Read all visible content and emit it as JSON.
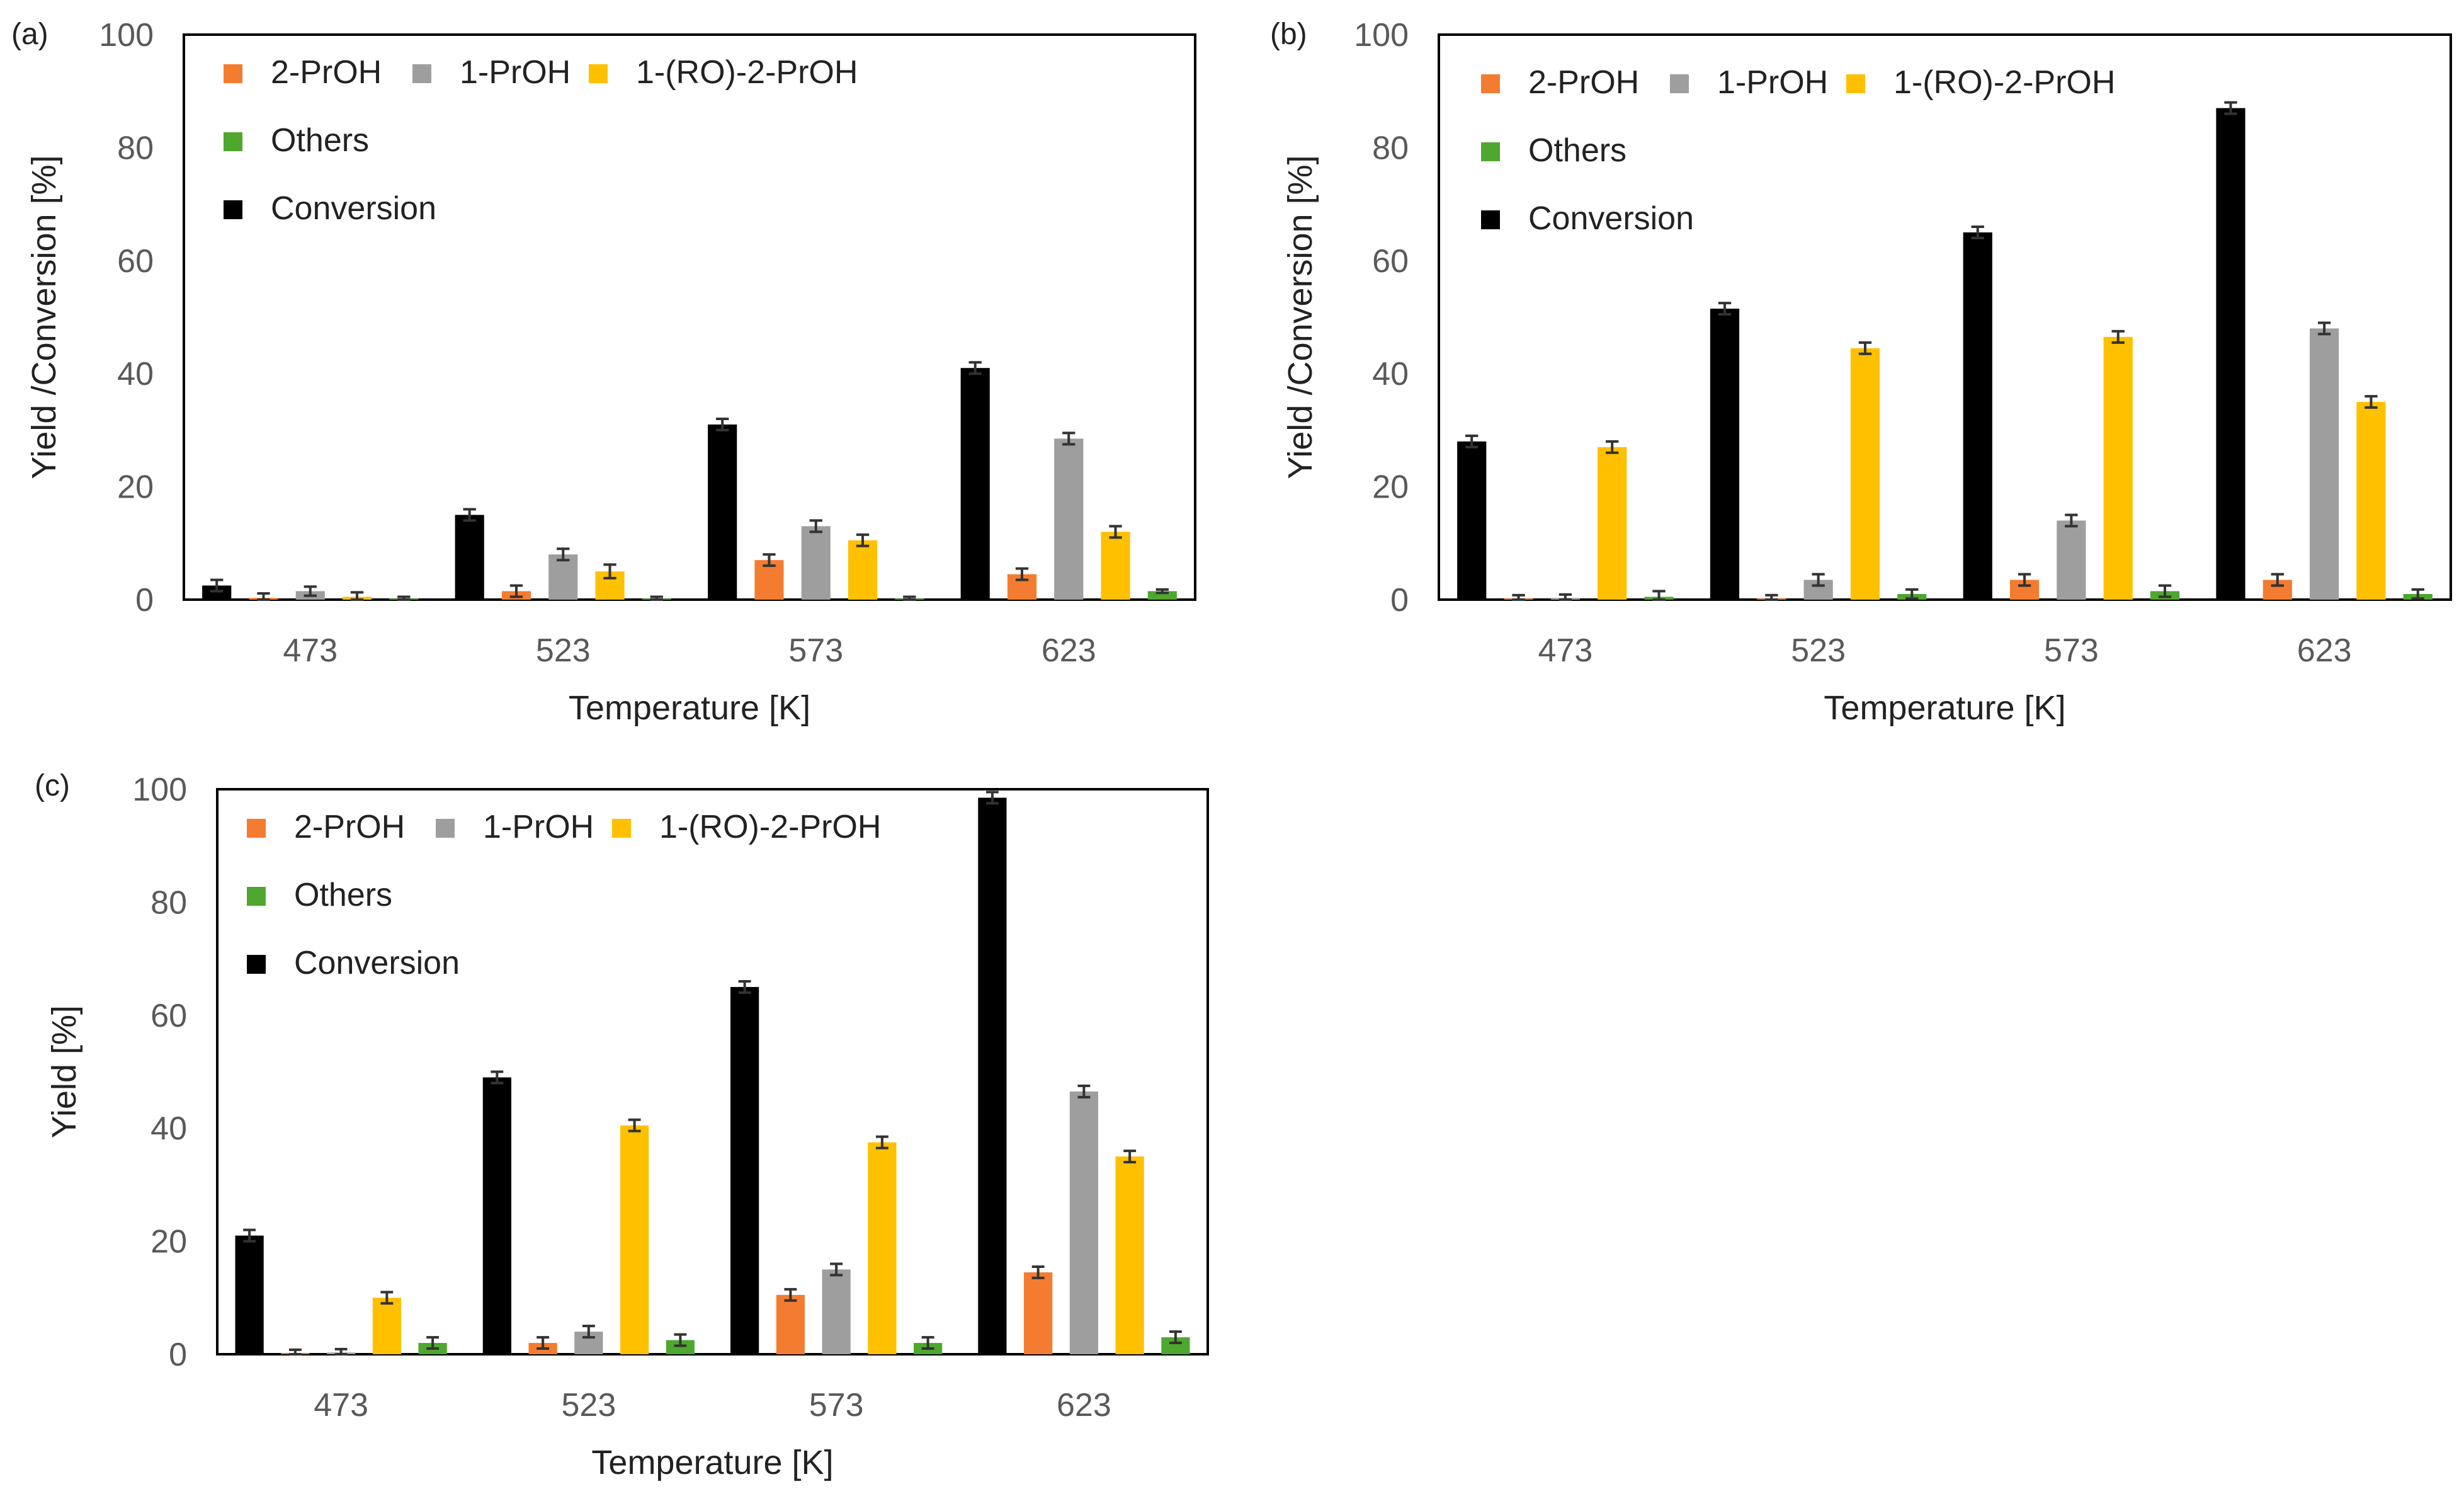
{
  "figure": {
    "panel_labels": [
      "(a)",
      "(b)",
      "(c)"
    ]
  },
  "legend": {
    "items": [
      {
        "key": "2-PrOH",
        "label": "2-PrOH",
        "color": "#F47C30"
      },
      {
        "key": "1-PrOH",
        "label": "1-PrOH",
        "color": "#9E9E9E"
      },
      {
        "key": "1-RO-2-PrOH",
        "label": "1-(RO)-2-PrOH",
        "color": "#FFC000"
      },
      {
        "key": "Others",
        "label": "Others",
        "color": "#4EA72E"
      },
      {
        "key": "Conversion",
        "label": "Conversion",
        "color": "#000000"
      }
    ]
  },
  "chart_data": [
    {
      "type": "bar",
      "panel": "(a)",
      "title": "",
      "xlabel": "Temperature [K]",
      "ylabel": "Yield /Conversion [%]",
      "ylim": [
        0,
        100
      ],
      "yticks": [
        "0",
        "20",
        "40",
        "60",
        "80",
        "100"
      ],
      "categories": [
        "473",
        "523",
        "573",
        "623"
      ],
      "series": [
        {
          "name": "Conversion",
          "values": [
            2.5,
            15,
            31,
            41
          ],
          "errors": [
            1,
            1,
            1,
            1
          ]
        },
        {
          "name": "2-PrOH",
          "values": [
            0.3,
            1.5,
            7,
            4.5
          ],
          "errors": [
            0.8,
            1,
            1,
            1
          ]
        },
        {
          "name": "1-PrOH",
          "values": [
            1.5,
            8,
            13,
            28.5
          ],
          "errors": [
            0.8,
            1,
            1,
            1
          ]
        },
        {
          "name": "1-(RO)-2-PrOH",
          "values": [
            0.5,
            5,
            10.5,
            12
          ],
          "errors": [
            0.8,
            1.2,
            1,
            1
          ]
        },
        {
          "name": "Others",
          "values": [
            0.2,
            0.2,
            0.2,
            1.5
          ],
          "errors": [
            0.3,
            0.3,
            0.3,
            0.3
          ]
        }
      ]
    },
    {
      "type": "bar",
      "panel": "(b)",
      "title": "",
      "xlabel": "Temperature [K]",
      "ylabel": "Yield /Conversion [%]",
      "ylim": [
        0,
        100
      ],
      "yticks": [
        "0",
        "20",
        "40",
        "60",
        "80",
        "100"
      ],
      "categories": [
        "473",
        "523",
        "573",
        "623"
      ],
      "series": [
        {
          "name": "Conversion",
          "values": [
            28,
            51.5,
            65,
            87
          ],
          "errors": [
            1,
            1,
            1,
            1
          ]
        },
        {
          "name": "2-PrOH",
          "values": [
            0.2,
            0.2,
            3.5,
            3.5
          ],
          "errors": [
            0.6,
            0.6,
            1,
            1
          ]
        },
        {
          "name": "1-PrOH",
          "values": [
            0.3,
            3.5,
            14,
            48
          ],
          "errors": [
            0.6,
            1,
            1,
            1
          ]
        },
        {
          "name": "1-(RO)-2-PrOH",
          "values": [
            27,
            44.5,
            46.5,
            35
          ],
          "errors": [
            1,
            1,
            1,
            1
          ]
        },
        {
          "name": "Others",
          "values": [
            0.5,
            1,
            1.5,
            1
          ],
          "errors": [
            1,
            0.8,
            1,
            0.8
          ]
        }
      ]
    },
    {
      "type": "bar",
      "panel": "(c)",
      "title": "",
      "xlabel": "Temperature [K]",
      "ylabel": "Yield [%]",
      "ylim": [
        0,
        100
      ],
      "yticks": [
        "0",
        "20",
        "40",
        "60",
        "80",
        "100"
      ],
      "categories": [
        "473",
        "523",
        "573",
        "623"
      ],
      "series": [
        {
          "name": "Conversion",
          "values": [
            21,
            49,
            65,
            98.5
          ],
          "errors": [
            1,
            1,
            1,
            1
          ]
        },
        {
          "name": "2-PrOH",
          "values": [
            0.2,
            2,
            10.5,
            14.5
          ],
          "errors": [
            0.6,
            1,
            1,
            1
          ]
        },
        {
          "name": "1-PrOH",
          "values": [
            0.3,
            4,
            15,
            46.5
          ],
          "errors": [
            0.6,
            1,
            1,
            1
          ]
        },
        {
          "name": "1-(RO)-2-PrOH",
          "values": [
            10,
            40.5,
            37.5,
            35
          ],
          "errors": [
            1,
            1,
            1,
            1
          ]
        },
        {
          "name": "Others",
          "values": [
            2,
            2.5,
            2,
            3
          ],
          "errors": [
            1,
            1,
            1,
            1
          ]
        }
      ]
    }
  ]
}
